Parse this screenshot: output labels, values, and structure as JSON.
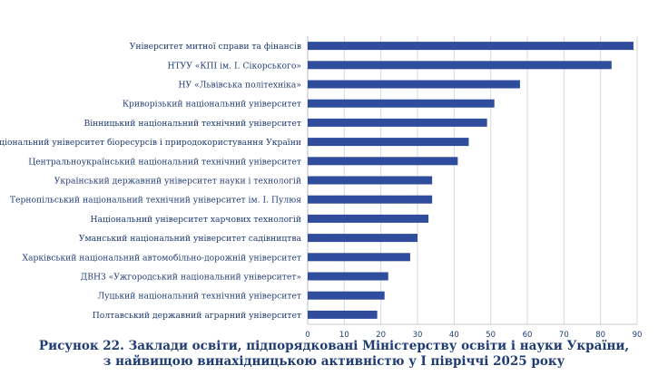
{
  "chart_data": {
    "type": "bar",
    "orientation": "horizontal",
    "categories": [
      "Університет митної справи та фінансів",
      "НТУУ «КПІ ім. І. Сікорського»",
      "НУ «Львівська політехніка»",
      "Криворізький національний університет",
      "Вінницький національний технічний університет",
      "Національний університет біоресурсів і природокористування України",
      "Центральноукраїнський національний технічний університет",
      "Український державний університет науки і технологій",
      "Тернопільський національний технічний університет ім. І. Пулюя",
      "Національний університет харчових технологій",
      "Уманський національний університет садівництва",
      "Харківський національний автомобільно-дорожній університет",
      "ДВНЗ «Ужгородський національний університет»",
      "Луцький національний технічний університет",
      "Полтавський державний аграрний університет"
    ],
    "values": [
      89,
      83,
      58,
      51,
      49,
      44,
      41,
      34,
      34,
      33,
      30,
      28,
      22,
      21,
      19
    ],
    "xlim": [
      0,
      90
    ],
    "xticks": [
      "0",
      "10",
      "20",
      "30",
      "40",
      "50",
      "60",
      "70",
      "80",
      "90"
    ],
    "grid": "vertical",
    "bar_color": "#2f4d9c"
  },
  "caption": {
    "line1": "Рисунок 22. Заклади освіти, підпорядковані Міністерству освіти і науки України,",
    "line2": "з найвищою винахідницькою активністю у І півріччі 2025 року"
  }
}
